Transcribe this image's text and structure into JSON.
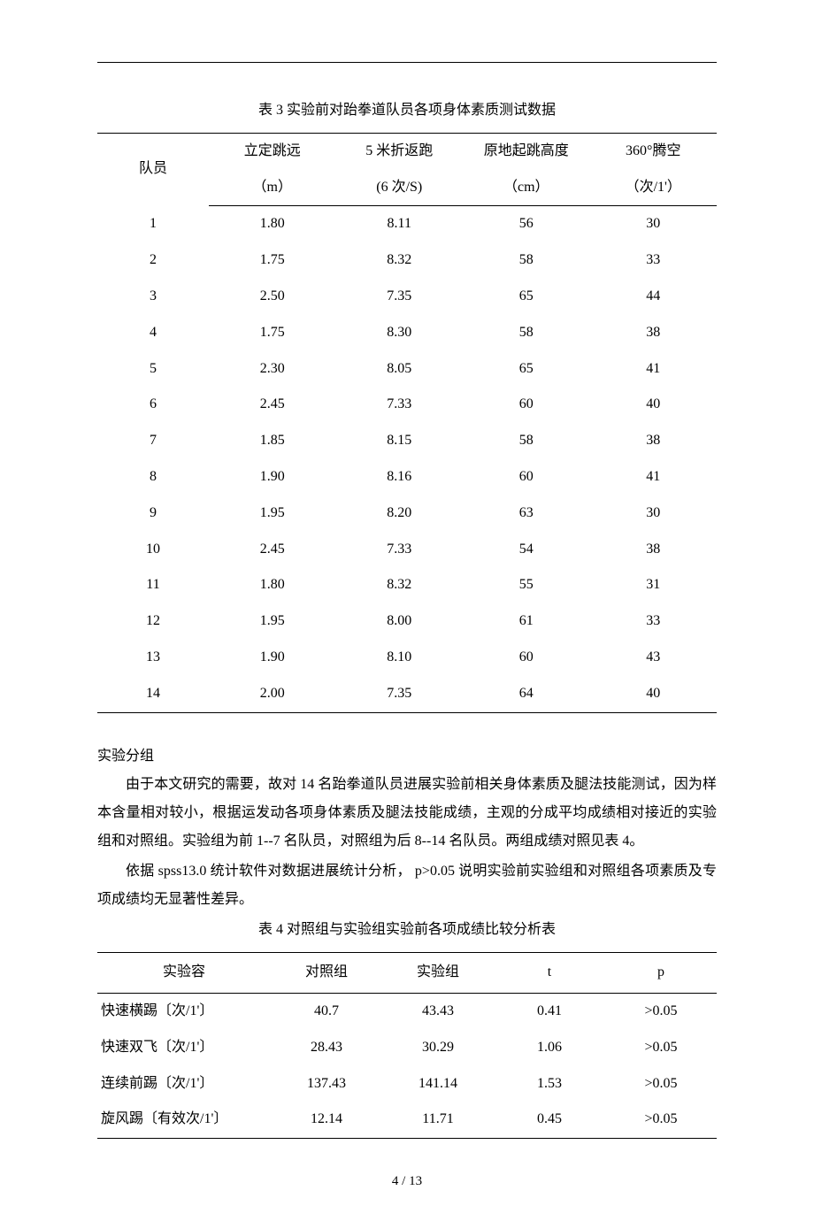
{
  "table3": {
    "title": "表 3  实验前对跆拳道队员各项身体素质测试数据",
    "headers": {
      "col1": "队员",
      "col2_line1": "立定跳远",
      "col2_line2": "（m）",
      "col3_line1": "5 米折返跑",
      "col3_line2": "(6 次/S)",
      "col4_line1": "原地起跳高度",
      "col4_line2": "（cm）",
      "col5_line1": "360°腾空",
      "col5_line2": "（次/1'）"
    },
    "rows": [
      [
        "1",
        "1.80",
        "8.11",
        "56",
        "30"
      ],
      [
        "2",
        "1.75",
        "8.32",
        "58",
        "33"
      ],
      [
        "3",
        "2.50",
        "7.35",
        "65",
        "44"
      ],
      [
        "4",
        "1.75",
        "8.30",
        "58",
        "38"
      ],
      [
        "5",
        "2.30",
        "8.05",
        "65",
        "41"
      ],
      [
        "6",
        "2.45",
        "7.33",
        "60",
        "40"
      ],
      [
        "7",
        "1.85",
        "8.15",
        "58",
        "38"
      ],
      [
        "8",
        "1.90",
        "8.16",
        "60",
        "41"
      ],
      [
        "9",
        "1.95",
        "8.20",
        "63",
        "30"
      ],
      [
        "10",
        "2.45",
        "7.33",
        "54",
        "38"
      ],
      [
        "11",
        "1.80",
        "8.32",
        "55",
        "31"
      ],
      [
        "12",
        "1.95",
        "8.00",
        "61",
        "33"
      ],
      [
        "13",
        "1.90",
        "8.10",
        "60",
        "43"
      ],
      [
        "14",
        "2.00",
        "7.35",
        "64",
        "40"
      ]
    ]
  },
  "body": {
    "heading": "实验分组",
    "p1": "由于本文研究的需要，故对 14 名跆拳道队员进展实验前相关身体素质及腿法技能测试，因为样本含量相对较小，根据运发动各项身体素质及腿法技能成绩，主观的分成平均成绩相对接近的实验组和对照组。实验组为前 1--7 名队员，对照组为后 8--14 名队员。两组成绩对照见表 4。",
    "p2": "依据 spss13.0 统计软件对数据进展统计分析， p>0.05 说明实验前实验组和对照组各项素质及专项成绩均无显著性差异。"
  },
  "table4": {
    "title": "表 4  对照组与实验组实验前各项成绩比较分析表",
    "headers": {
      "col1": "实验容",
      "col2": "对照组",
      "col3": "实验组",
      "col4": "t",
      "col5": "p"
    },
    "rows": [
      [
        "快速横踢〔次/1'〕",
        "40.7",
        "43.43",
        "0.41",
        ">0.05"
      ],
      [
        "快速双飞〔次/1'〕",
        "28.43",
        "30.29",
        "1.06",
        ">0.05"
      ],
      [
        "连续前踢〔次/1'〕",
        "137.43",
        "141.14",
        "1.53",
        ">0.05"
      ],
      [
        "旋风踢〔有效次/1'〕",
        "12.14",
        "11.71",
        "0.45",
        ">0.05"
      ]
    ]
  },
  "footer": {
    "page": "4 / 13"
  }
}
